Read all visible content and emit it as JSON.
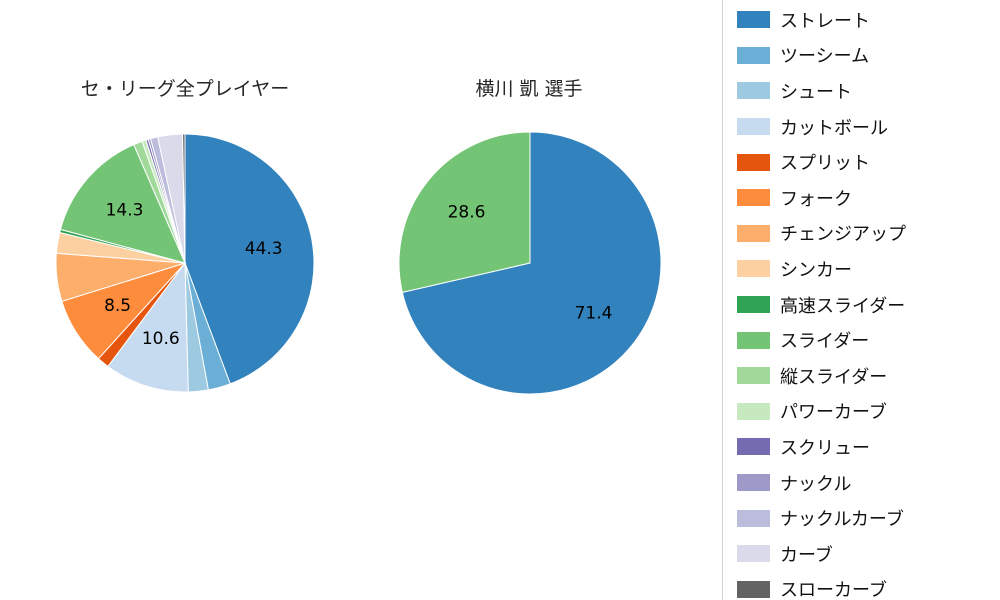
{
  "page": {
    "background": "#ffffff"
  },
  "chart_data": [
    {
      "type": "pie",
      "title": "セ・リーグ全プレイヤー",
      "direction": "clockwise",
      "start_angle": "top",
      "labels": [
        "ストレート",
        "ツーシーム",
        "シュート",
        "カットボール",
        "スプリット",
        "フォーク",
        "チェンジアップ",
        "シンカー",
        "高速スライダー",
        "スライダー",
        "縦スライダー",
        "パワーカーブ",
        "スクリュー",
        "ナックル",
        "ナックルカーブ",
        "カーブ",
        "スローカーブ"
      ],
      "values": [
        44.3,
        2.8,
        2.5,
        10.6,
        1.5,
        8.5,
        6.0,
        2.6,
        0.4,
        14.3,
        1.1,
        0.5,
        0.3,
        0.3,
        0.9,
        3.1,
        0.3
      ],
      "value_labels": [
        "44.3",
        "",
        "",
        "10.6",
        "",
        "8.5",
        "",
        "",
        "",
        "14.3",
        "",
        "",
        "",
        "",
        "",
        "",
        ""
      ]
    },
    {
      "type": "pie",
      "title": "横川 凱  選手",
      "direction": "clockwise",
      "start_angle": "top",
      "labels": [
        "ストレート",
        "スライダー"
      ],
      "values": [
        71.4,
        28.6
      ],
      "value_labels": [
        "71.4",
        "28.6"
      ]
    }
  ],
  "legend": {
    "position": "right",
    "items": [
      {
        "label": "ストレート",
        "color": "#3182bd"
      },
      {
        "label": "ツーシーム",
        "color": "#6baed6"
      },
      {
        "label": "シュート",
        "color": "#9ecae1"
      },
      {
        "label": "カットボール",
        "color": "#c6dbef"
      },
      {
        "label": "スプリット",
        "color": "#e6550d"
      },
      {
        "label": "フォーク",
        "color": "#fd8d3c"
      },
      {
        "label": "チェンジアップ",
        "color": "#fdae6b"
      },
      {
        "label": "シンカー",
        "color": "#fdd0a2"
      },
      {
        "label": "高速スライダー",
        "color": "#31a354"
      },
      {
        "label": "スライダー",
        "color": "#74c476"
      },
      {
        "label": "縦スライダー",
        "color": "#a1d99b"
      },
      {
        "label": "パワーカーブ",
        "color": "#c7e9c0"
      },
      {
        "label": "スクリュー",
        "color": "#756bb1"
      },
      {
        "label": "ナックル",
        "color": "#9e9ac8"
      },
      {
        "label": "ナックルカーブ",
        "color": "#bcbddc"
      },
      {
        "label": "カーブ",
        "color": "#dadaeb"
      },
      {
        "label": "スローカーブ",
        "color": "#636363"
      }
    ]
  }
}
